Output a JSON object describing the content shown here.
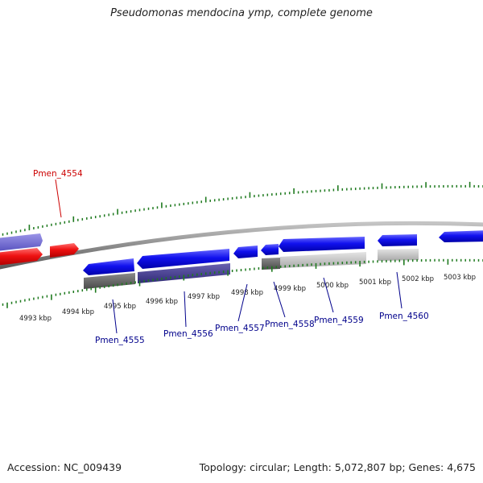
{
  "title": "Pseudomonas mendocina ymp, complete genome",
  "footer": {
    "accession": "Accession: NC_009439",
    "summary": "Topology: circular; Length: 5,072,807 bp; Genes: 4,675"
  },
  "colors": {
    "forward_gene": "#1212ee",
    "reverse_gene": "#ee1111",
    "highlight_label": "#cc0000",
    "gene_label": "#00008b",
    "tick": "#1f7a1f",
    "backbone": "#808080"
  },
  "ruler_labels": [
    "4993 kbp",
    "4994 kbp",
    "4995 kbp",
    "4996 kbp",
    "4997 kbp",
    "4998 kbp",
    "4999 kbp",
    "5000 kbp",
    "5001 kbp",
    "5002 kbp",
    "5003 kbp"
  ],
  "gene_labels": [
    "Pmen_4554",
    "Pmen_4555",
    "Pmen_4556",
    "Pmen_4557",
    "Pmen_4558",
    "Pmen_4559",
    "Pmen_4560"
  ]
}
